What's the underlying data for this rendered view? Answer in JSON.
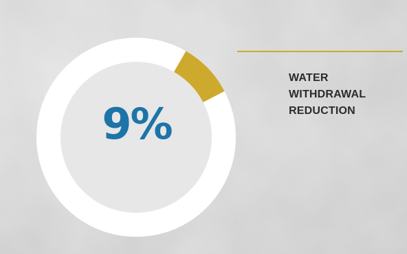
{
  "chart_data": {
    "type": "pie",
    "style": "donut",
    "value_text": "9%",
    "label_lines": [
      "WATER",
      "WITHDRAWAL",
      "REDUCTION"
    ],
    "slices": [
      {
        "value": 9,
        "color": "#cdaa2e"
      },
      {
        "value": 91,
        "color": "#ffffff"
      }
    ]
  },
  "colors": {
    "highlight": "#cdaa2e",
    "remainder": "#ffffff",
    "value_text": "#1d74a8",
    "label_text": "#2b2b2b",
    "leader_line": "#cdaa2e",
    "background": "#d6d6d6"
  }
}
